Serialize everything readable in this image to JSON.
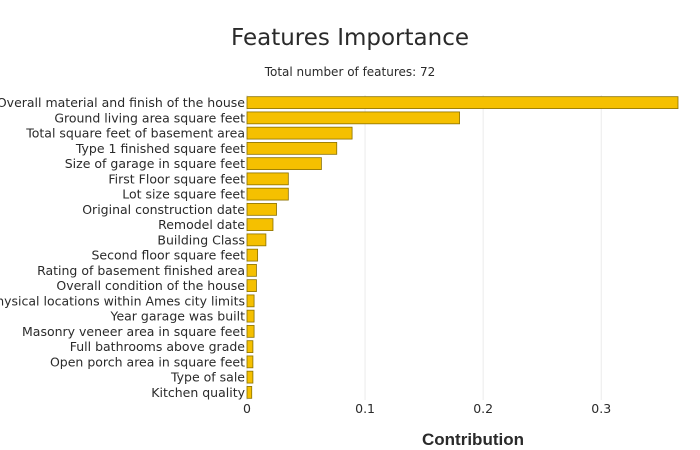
{
  "chart_data": {
    "type": "bar",
    "orientation": "horizontal",
    "title": "Features Importance",
    "subtitle": "Total number of features: 72",
    "xlabel": "Contribution",
    "ylabel": "",
    "xlim": [
      0,
      0.365
    ],
    "xticks": [
      0,
      0.1,
      0.2,
      0.3
    ],
    "xtick_labels": [
      "0",
      "0.1",
      "0.2",
      "0.3"
    ],
    "grid": true,
    "bar_color": "#f5c000",
    "categories": [
      "Overall material and finish of the house",
      "Ground living area square feet",
      "Total square feet of basement area",
      "Type 1 finished square feet",
      "Size of garage in square feet",
      "First Floor square feet",
      "Lot size square feet",
      "Original construction date",
      "Remodel date",
      "Building Class",
      "Second floor square feet",
      "Rating of basement finished area",
      "Overall condition of the house",
      "Physical locations within Ames city limits",
      "Year garage was built",
      "Masonry veneer area in square feet",
      "Full bathrooms above grade",
      "Open porch area in square feet",
      "Type of sale",
      "Kitchen quality"
    ],
    "values": [
      0.365,
      0.18,
      0.089,
      0.076,
      0.063,
      0.035,
      0.035,
      0.025,
      0.022,
      0.016,
      0.009,
      0.008,
      0.008,
      0.006,
      0.006,
      0.006,
      0.005,
      0.005,
      0.005,
      0.004
    ]
  }
}
